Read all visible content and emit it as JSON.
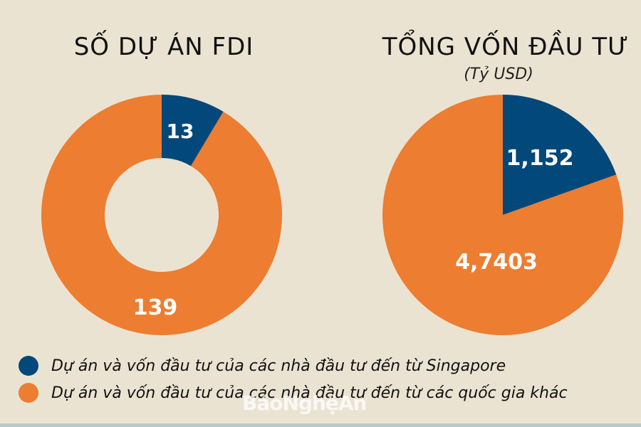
{
  "colors": {
    "background": "#ebe3d2",
    "singapore": "#02487a",
    "others": "#ed7d31",
    "label_text": "#ffffff"
  },
  "charts": {
    "projects": {
      "title": "SỐ DỰ ÁN FDI",
      "singapore_label": "13",
      "others_label": "139"
    },
    "capital": {
      "title": "TỔNG VỐN ĐẦU TƯ",
      "subtitle": "(Tỷ USD)",
      "singapore_label": "1,152",
      "others_label": "4,7403"
    }
  },
  "legend": [
    {
      "label": "Dự án và vốn đầu tư của các nhà đầu tư đến từ Singapore",
      "color": "#02487a"
    },
    {
      "label": "Dự án và vốn đầu tư của các nhà đầu tư đến từ các quốc gia khác",
      "color": "#ed7d31"
    }
  ],
  "watermark": "BáoNghệAn",
  "chart_data": [
    {
      "type": "pie",
      "variant": "donut",
      "title": "SỐ DỰ ÁN FDI",
      "categories": [
        "Singapore",
        "Các quốc gia khác"
      ],
      "values": [
        13,
        139
      ],
      "data_labels": [
        "13",
        "139"
      ],
      "colors": [
        "#02487a",
        "#ed7d31"
      ],
      "legend_position": "bottom"
    },
    {
      "type": "pie",
      "title": "TỔNG VỐN ĐẦU TƯ",
      "subtitle": "(Tỷ USD)",
      "categories": [
        "Singapore",
        "Các quốc gia khác"
      ],
      "values": [
        1.152,
        4.7403
      ],
      "data_labels": [
        "1,152",
        "4,7403"
      ],
      "colors": [
        "#02487a",
        "#ed7d31"
      ],
      "legend_position": "bottom"
    }
  ]
}
